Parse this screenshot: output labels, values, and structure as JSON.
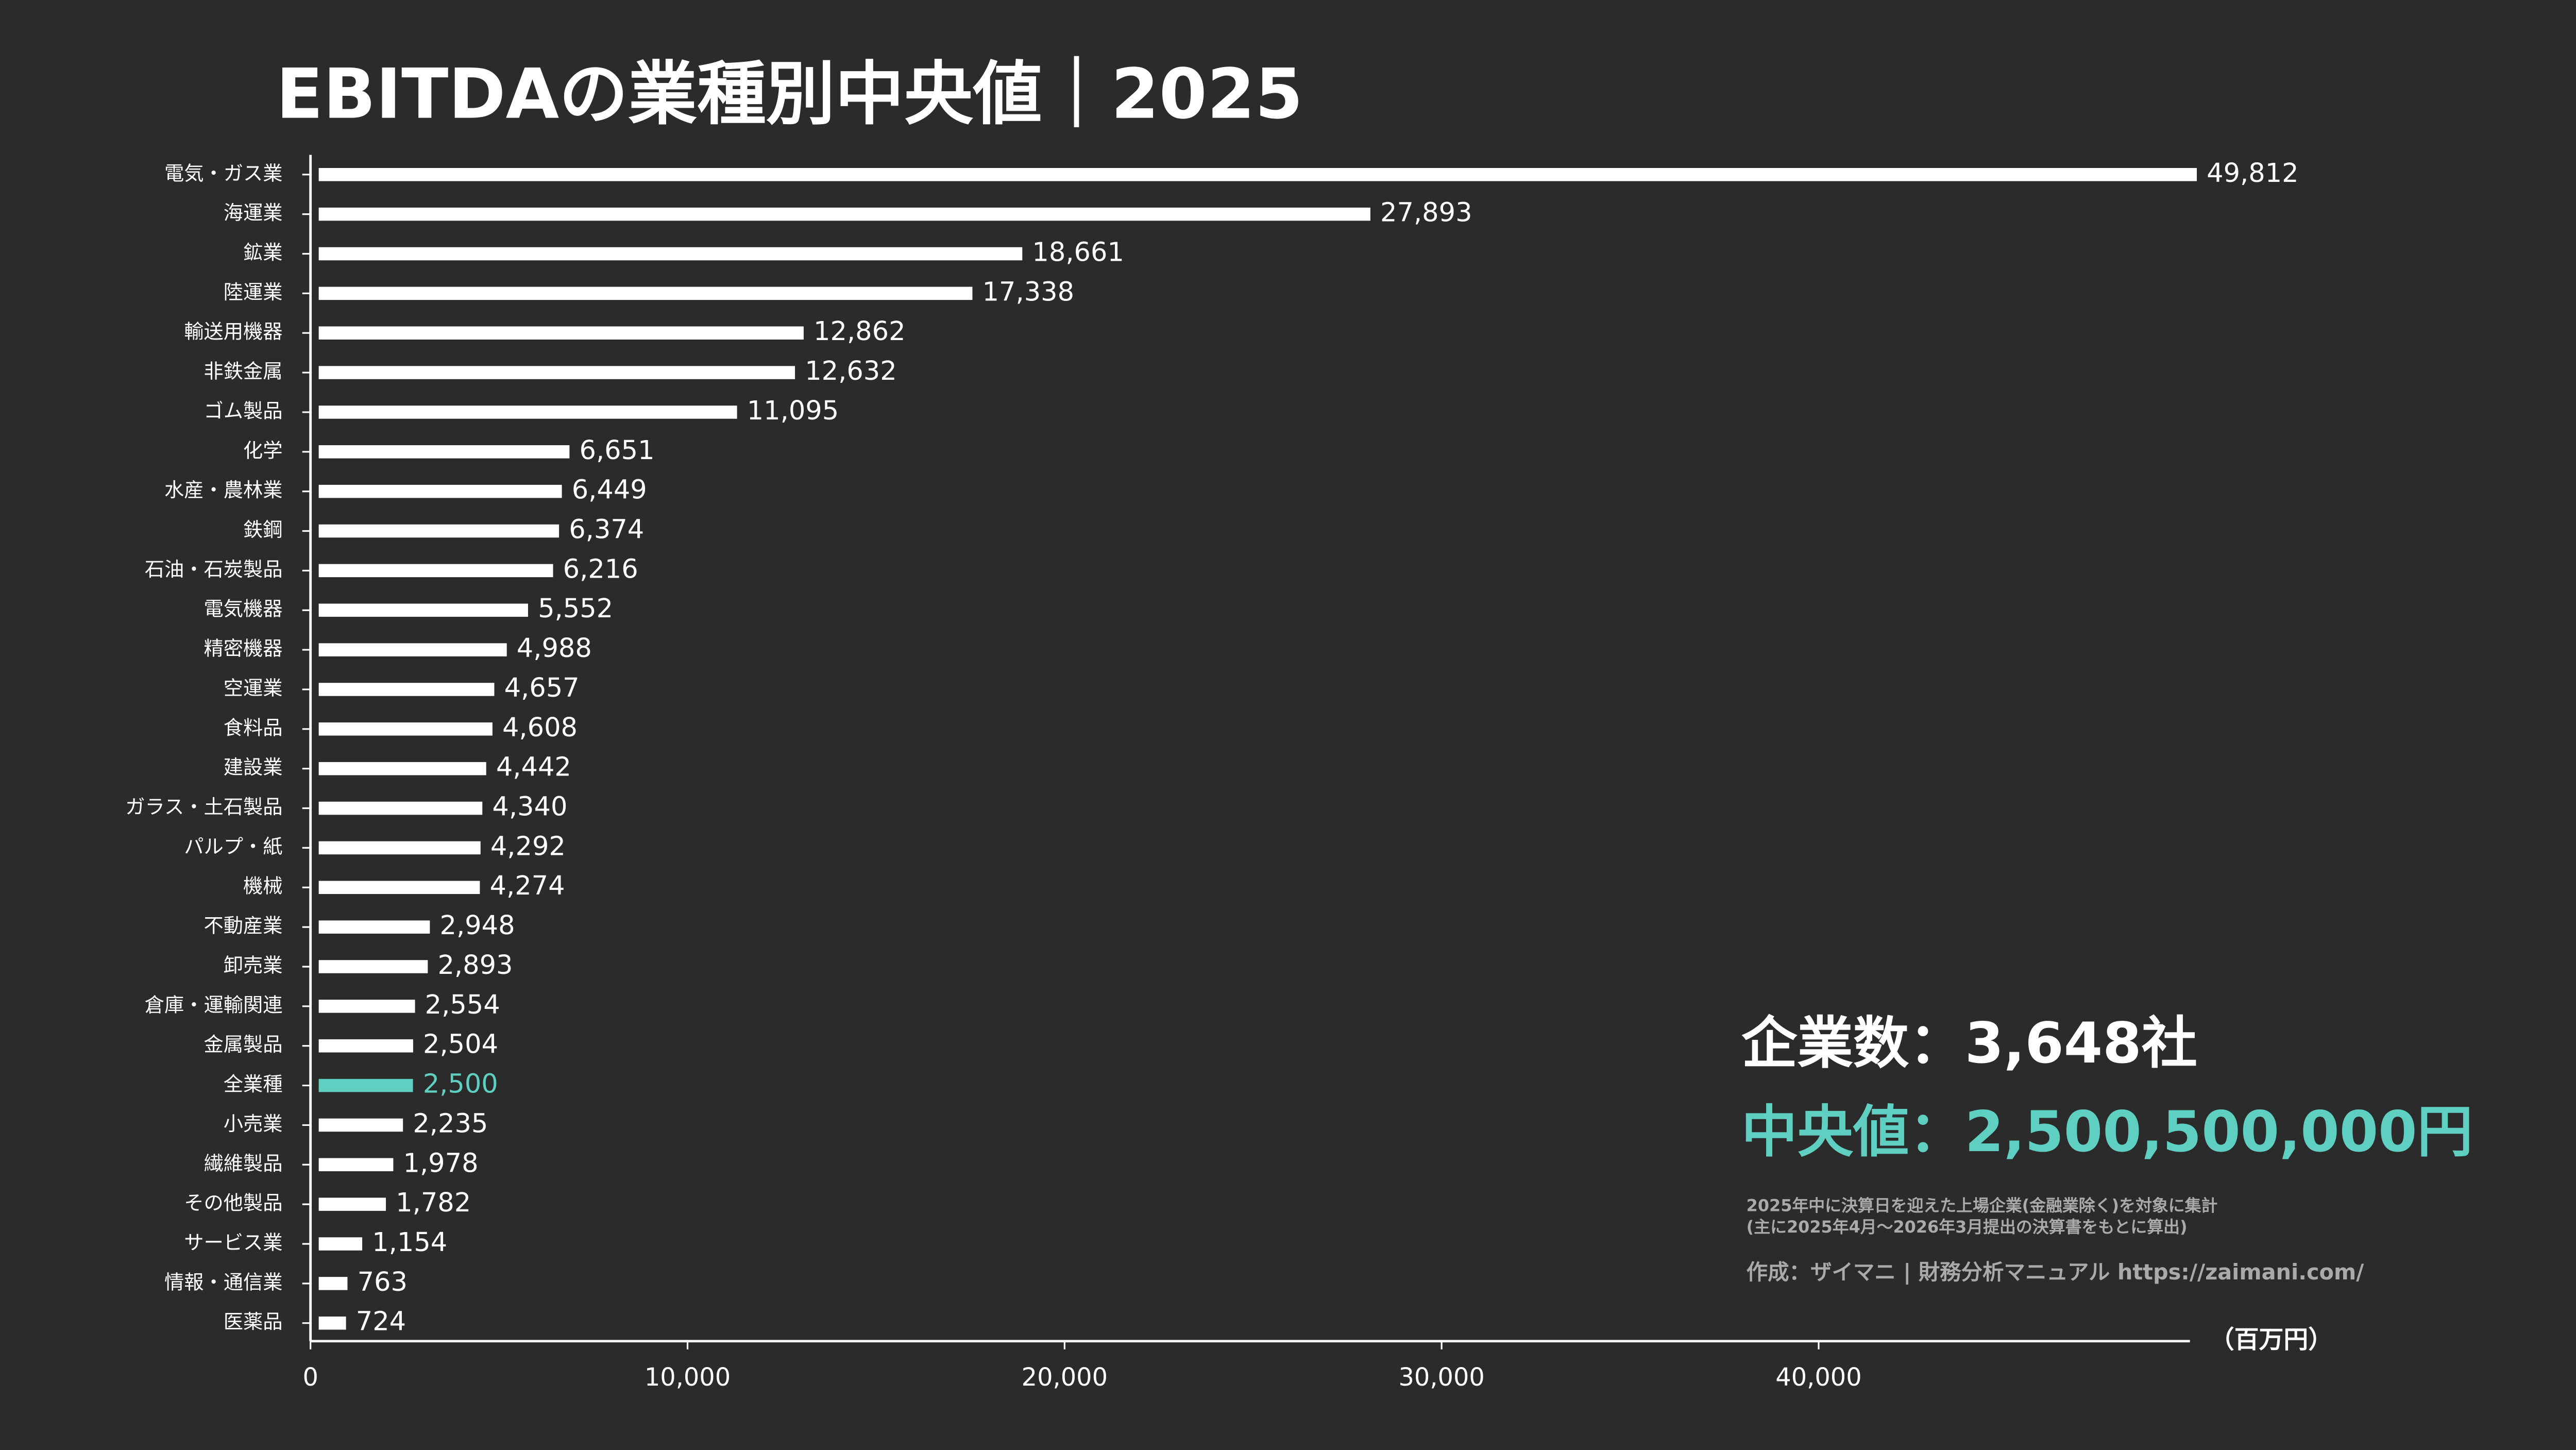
{
  "chart_data": {
    "type": "barh",
    "title": "EBITDAの業種別中央値｜2025",
    "categories": [
      "電気・ガス業",
      "海運業",
      "鉱業",
      "陸運業",
      "輸送用機器",
      "非鉄金属",
      "ゴム製品",
      "化学",
      "水産・農林業",
      "鉄鋼",
      "石油・石炭製品",
      "電気機器",
      "精密機器",
      "空運業",
      "食料品",
      "建設業",
      "ガラス・土石製品",
      "パルプ・紙",
      "機械",
      "不動産業",
      "卸売業",
      "倉庫・運輸関連",
      "金属製品",
      "全業種",
      "小売業",
      "繊維製品",
      "その他製品",
      "サービス業",
      "情報・通信業",
      "医薬品"
    ],
    "values": [
      49812,
      27893,
      18661,
      17338,
      12862,
      12632,
      11095,
      6651,
      6449,
      6374,
      6216,
      5552,
      4988,
      4657,
      4608,
      4442,
      4340,
      4292,
      4274,
      2948,
      2893,
      2554,
      2504,
      2500,
      2235,
      1978,
      1782,
      1154,
      763,
      724
    ],
    "value_labels": [
      "49,812",
      "27,893",
      "18,661",
      "17,338",
      "12,862",
      "12,632",
      "11,095",
      "6,651",
      "6,449",
      "6,374",
      "6,216",
      "5,552",
      "4,988",
      "4,657",
      "4,608",
      "4,442",
      "4,340",
      "4,292",
      "4,274",
      "2,948",
      "2,893",
      "2,554",
      "2,504",
      "2,500",
      "2,235",
      "1,978",
      "1,782",
      "1,154",
      "763",
      "724"
    ],
    "colors": [
      "#ffffff",
      "#ffffff",
      "#ffffff",
      "#ffffff",
      "#ffffff",
      "#ffffff",
      "#ffffff",
      "#ffffff",
      "#ffffff",
      "#ffffff",
      "#ffffff",
      "#ffffff",
      "#ffffff",
      "#ffffff",
      "#ffffff",
      "#ffffff",
      "#ffffff",
      "#ffffff",
      "#ffffff",
      "#ffffff",
      "#ffffff",
      "#ffffff",
      "#ffffff",
      "#5ecfc1",
      "#ffffff",
      "#ffffff",
      "#ffffff",
      "#ffffff",
      "#ffffff",
      "#ffffff"
    ],
    "xlim": [
      0,
      50000
    ],
    "xticks": [
      0,
      {
        "value": 10000,
        "label": "10,000"
      },
      {
        "value": 20000,
        "label": "20,000"
      },
      {
        "value": 30000,
        "label": "30,000"
      },
      {
        "value": 40000,
        "label": "40,000"
      }
    ],
    "x_unit": "（百万円）",
    "annotations": {
      "company_count": "企業数：3,648社",
      "median": "中央値：2,500,500,000円",
      "note_1": "2025年中に決算日を迎えた上場企業(金融業除く)を対象に集計",
      "note_2": "(主に2025年4月～2026年3月提出の決算書をもとに算出)",
      "credit": "作成：ザイマニ | 財務分析マニュアル https://zaimani.com/"
    }
  }
}
